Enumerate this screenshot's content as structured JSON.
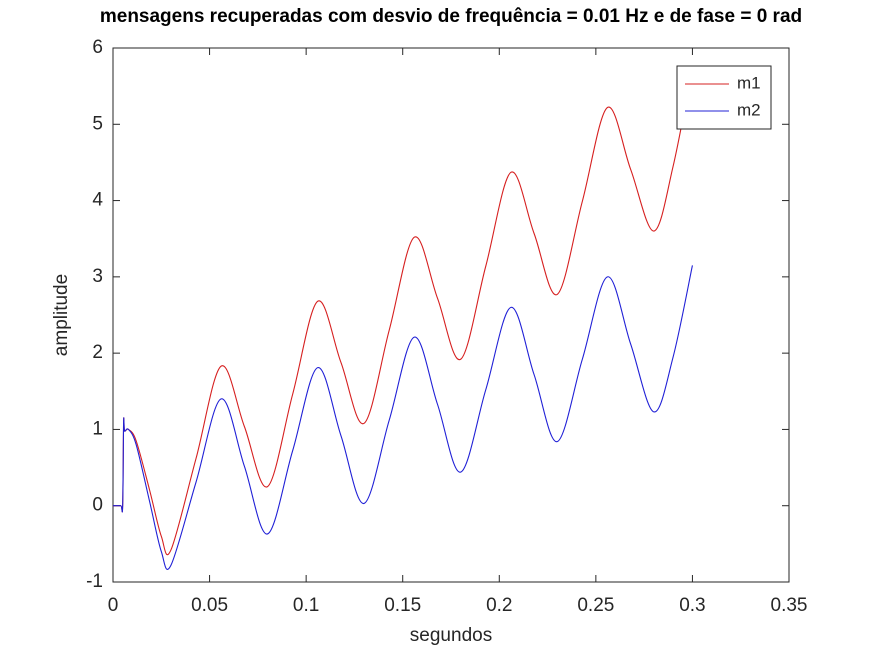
{
  "chart_data": {
    "type": "line",
    "title": "mensagens recuperadas com desvio de frequência = 0.01 Hz e de fase = 0 rad",
    "x_label": "segundos",
    "y_label": "amplitude",
    "x": [
      0,
      0.004,
      0.005,
      0.0055,
      0.006,
      0.008,
      0.012,
      0.019,
      0.025,
      0.03,
      0.043,
      0.056,
      0.068,
      0.08,
      0.093,
      0.106,
      0.118,
      0.13,
      0.143,
      0.156,
      0.168,
      0.18,
      0.193,
      0.206,
      0.218,
      0.23,
      0.243,
      0.256,
      0.268,
      0.28,
      0.29,
      0.3
    ],
    "series": [
      {
        "name": "m1",
        "color": "#d62020",
        "values": [
          0,
          0,
          0,
          1.1,
          0.98,
          1.0,
          0.85,
          0.2,
          -0.4,
          -0.58,
          0.62,
          1.83,
          1.04,
          0.25,
          1.46,
          2.68,
          1.88,
          1.08,
          2.3,
          3.52,
          2.72,
          1.92,
          3.14,
          4.37,
          3.57,
          2.77,
          3.99,
          5.22,
          4.41,
          3.6,
          4.45,
          5.74
        ]
      },
      {
        "name": "m2",
        "color": "#2020d6",
        "values": [
          0,
          0,
          0,
          1.1,
          0.98,
          1.0,
          0.8,
          0.05,
          -0.6,
          -0.78,
          0.31,
          1.4,
          0.52,
          -0.37,
          0.72,
          1.81,
          0.92,
          0.03,
          1.12,
          2.21,
          1.33,
          0.44,
          1.52,
          2.6,
          1.72,
          0.84,
          1.92,
          3.0,
          2.12,
          1.23,
          1.95,
          3.15
        ]
      }
    ],
    "xlim": [
      0,
      0.35
    ],
    "xticks": [
      0,
      0.05,
      0.1,
      0.15,
      0.2,
      0.25,
      0.3,
      0.35
    ],
    "ylim": [
      -1,
      6
    ],
    "yticks": [
      -1,
      0,
      1,
      2,
      3,
      4,
      5,
      6
    ],
    "legend": "top-right"
  }
}
